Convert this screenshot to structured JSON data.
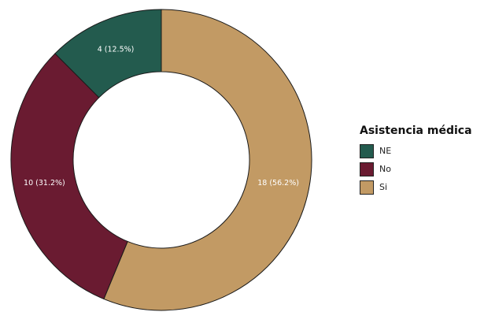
{
  "chart_data": {
    "type": "pie",
    "donut": true,
    "title": "",
    "legend": {
      "title": "Asistencia médica",
      "placement": "right"
    },
    "slices": [
      {
        "label": "Si",
        "value": 18,
        "text": "18 (56.2%)",
        "color": "#c29a64"
      },
      {
        "label": "No",
        "value": 10,
        "text": "10 (31.2%)",
        "color": "#6a1b31"
      },
      {
        "label": "NE",
        "value": 4,
        "text": "4 (12.5%)",
        "color": "#235b4e"
      }
    ],
    "legend_order": [
      "NE",
      "No",
      "Si"
    ]
  }
}
